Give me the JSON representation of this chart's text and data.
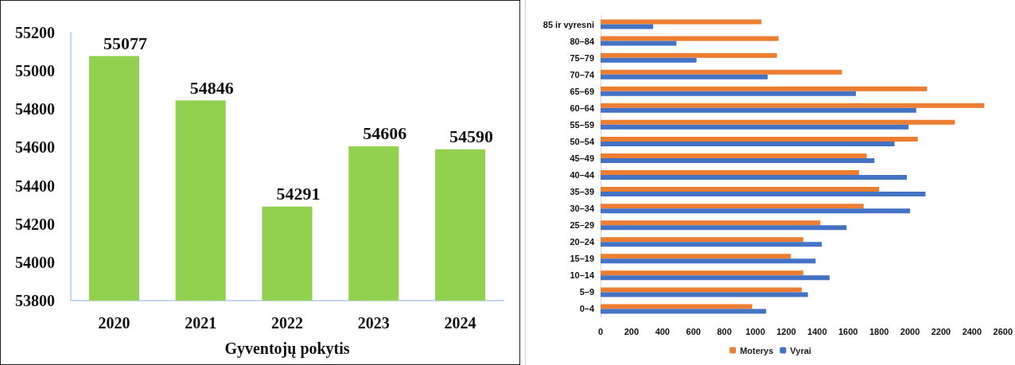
{
  "chart_data": [
    {
      "type": "bar",
      "xlabel": "Gyventojų pokytis",
      "categories": [
        "2020",
        "2021",
        "2022",
        "2023",
        "2024"
      ],
      "values": [
        55077,
        54846,
        54291,
        54606,
        54590
      ],
      "color": "#92d050",
      "ylim": [
        53800,
        55200
      ],
      "yticks": [
        53800,
        54000,
        54200,
        54400,
        54600,
        54800,
        55000,
        55200
      ],
      "data_labels": true,
      "grid": false
    },
    {
      "type": "bar",
      "orientation": "horizontal",
      "categories": [
        "85 ir vyresni",
        "80–84",
        "75–79",
        "70–74",
        "65–69",
        "60–64",
        "55–59",
        "50–54",
        "45–49",
        "40–44",
        "35–39",
        "30–34",
        "25–29",
        "20–24",
        "15–19",
        "10–14",
        "5–9",
        "0–4"
      ],
      "series": [
        {
          "name": "Moterys",
          "color": "#ed7d31",
          "values": [
            1040,
            1150,
            1140,
            1560,
            2110,
            2480,
            2290,
            2050,
            1720,
            1670,
            1800,
            1700,
            1420,
            1310,
            1230,
            1310,
            1300,
            980
          ]
        },
        {
          "name": "Vyrai",
          "color": "#4472c4",
          "values": [
            340,
            490,
            620,
            1080,
            1650,
            2040,
            1990,
            1900,
            1770,
            1980,
            2100,
            2000,
            1590,
            1430,
            1390,
            1480,
            1340,
            1070
          ]
        }
      ],
      "xlim": [
        0,
        2600
      ],
      "xticks": [
        0,
        200,
        400,
        600,
        800,
        1000,
        1200,
        1400,
        1600,
        1800,
        2000,
        2200,
        2400,
        2600
      ],
      "legend": "bottom",
      "grid": false
    }
  ]
}
